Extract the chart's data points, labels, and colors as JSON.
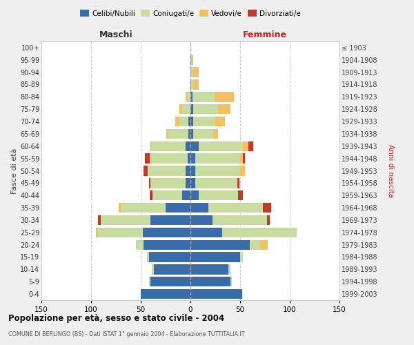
{
  "age_groups": [
    "0-4",
    "5-9",
    "10-14",
    "15-19",
    "20-24",
    "25-29",
    "30-34",
    "35-39",
    "40-44",
    "45-49",
    "50-54",
    "55-59",
    "60-64",
    "65-69",
    "70-74",
    "75-79",
    "80-84",
    "85-89",
    "90-94",
    "95-99",
    "100+"
  ],
  "birth_years": [
    "1999-2003",
    "1994-1998",
    "1989-1993",
    "1984-1988",
    "1979-1983",
    "1974-1978",
    "1969-1973",
    "1964-1968",
    "1959-1963",
    "1954-1958",
    "1949-1953",
    "1944-1948",
    "1939-1943",
    "1934-1938",
    "1929-1933",
    "1924-1928",
    "1919-1923",
    "1914-1918",
    "1909-1913",
    "1904-1908",
    "≤ 1903"
  ],
  "colors": {
    "celibi": "#3a6ca8",
    "coniugati": "#c8dba0",
    "vedovi": "#f5c060",
    "divorziati": "#c0392b"
  },
  "m_cel": [
    50,
    40,
    37,
    42,
    47,
    48,
    40,
    25,
    8,
    5,
    5,
    3,
    5,
    2,
    2,
    0,
    0,
    0,
    0,
    0,
    0
  ],
  "m_con": [
    0,
    2,
    2,
    2,
    8,
    45,
    50,
    45,
    30,
    35,
    38,
    38,
    35,
    20,
    10,
    8,
    3,
    0,
    0,
    0,
    0
  ],
  "m_ved": [
    0,
    0,
    0,
    0,
    0,
    2,
    0,
    2,
    0,
    0,
    0,
    0,
    1,
    2,
    3,
    3,
    2,
    0,
    0,
    0,
    0
  ],
  "m_div": [
    0,
    0,
    0,
    0,
    0,
    0,
    3,
    0,
    3,
    2,
    4,
    5,
    0,
    0,
    0,
    0,
    0,
    0,
    0,
    0,
    0
  ],
  "f_cel": [
    52,
    40,
    38,
    50,
    60,
    32,
    22,
    18,
    8,
    5,
    5,
    5,
    8,
    3,
    3,
    3,
    2,
    1,
    1,
    1,
    0
  ],
  "f_con": [
    0,
    2,
    2,
    3,
    10,
    75,
    55,
    55,
    40,
    42,
    45,
    45,
    45,
    20,
    22,
    25,
    22,
    2,
    2,
    0,
    0
  ],
  "f_ved": [
    0,
    0,
    0,
    0,
    8,
    0,
    0,
    0,
    0,
    0,
    5,
    3,
    5,
    5,
    10,
    12,
    20,
    5,
    5,
    2,
    0
  ],
  "f_div": [
    0,
    0,
    0,
    0,
    0,
    0,
    3,
    8,
    5,
    2,
    0,
    2,
    5,
    0,
    0,
    0,
    0,
    0,
    0,
    0,
    0
  ],
  "xlim": 150,
  "title": "Popolazione per età, sesso e stato civile - 2004",
  "subtitle": "COMUNE DI BERLINGO (BS) - Dati ISTAT 1° gennaio 2004 - Elaborazione TUTTITALIA.IT",
  "ylabel_left": "Fasce di età",
  "ylabel_right": "Anni di nascita",
  "xlabel_maschi": "Maschi",
  "xlabel_femmine": "Femmine",
  "legend_labels": [
    "Celibi/Nubili",
    "Coniugati/e",
    "Vedovi/e",
    "Divorziati/e"
  ],
  "bg_color": "#efefef",
  "plot_bg_color": "#ffffff"
}
